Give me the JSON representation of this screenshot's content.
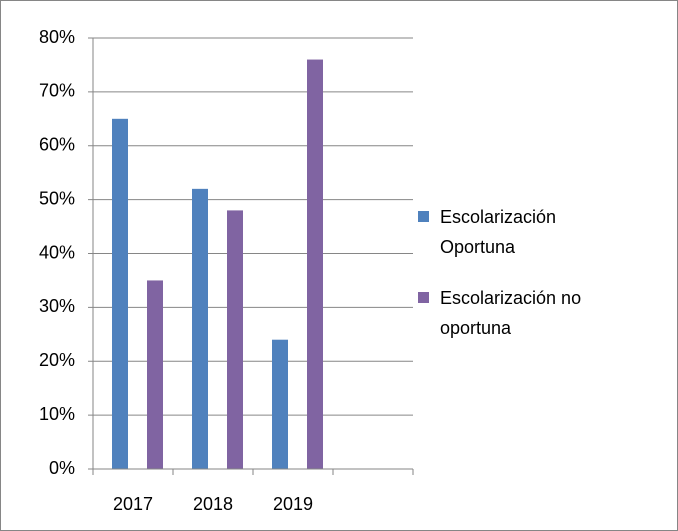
{
  "chart_data": {
    "type": "bar",
    "categories": [
      "2017",
      "2018",
      "2019",
      null
    ],
    "series": [
      {
        "name": "Escolarización Oportuna",
        "color": "#4f81bd",
        "values": [
          65,
          52,
          24,
          null
        ]
      },
      {
        "name": "Escolarización no oportuna",
        "color": "#8064a2",
        "values": [
          35,
          48,
          76,
          null
        ]
      }
    ],
    "ylim": [
      0,
      80
    ],
    "yticks": [
      {
        "value": 0,
        "label": "0%"
      },
      {
        "value": 10,
        "label": "10%"
      },
      {
        "value": 20,
        "label": "20%"
      },
      {
        "value": 30,
        "label": "30%"
      },
      {
        "value": 40,
        "label": "40%"
      },
      {
        "value": 50,
        "label": "50%"
      },
      {
        "value": 60,
        "label": "60%"
      },
      {
        "value": 70,
        "label": "70%"
      },
      {
        "value": 80,
        "label": "80%"
      }
    ],
    "grid": true,
    "legend": "right"
  }
}
